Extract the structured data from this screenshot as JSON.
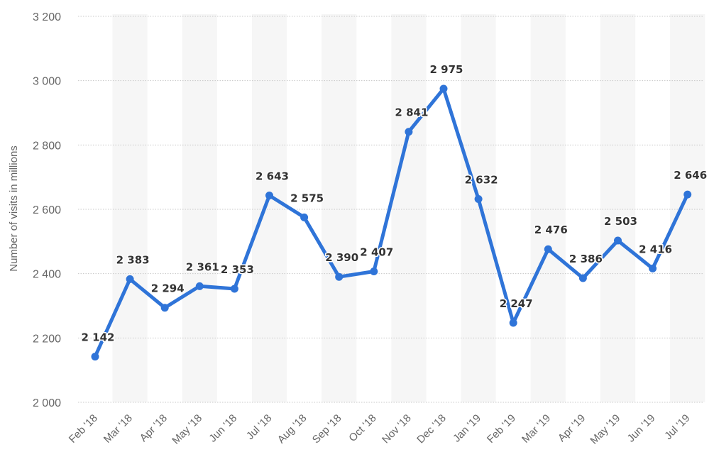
{
  "chart_data": {
    "type": "line",
    "ylabel": "Number of visits in millions",
    "xlabel": "",
    "title": "",
    "ylim": [
      2000,
      3200
    ],
    "yticks": [
      2000,
      2200,
      2400,
      2600,
      2800,
      3000,
      3200
    ],
    "ytick_labels": [
      "2 000",
      "2 200",
      "2 400",
      "2 600",
      "2 800",
      "3 000",
      "3 200"
    ],
    "grid": true,
    "categories": [
      "Feb '18",
      "Mar '18",
      "Apr '18",
      "May '18",
      "Jun '18",
      "Jul '18",
      "Aug '18",
      "Sep '18",
      "Oct '18",
      "Nov '18",
      "Dec '18",
      "Jan '19",
      "Feb '19",
      "Mar '19",
      "Apr '19",
      "May '19",
      "Jun '19",
      "Jul '19"
    ],
    "values": [
      2142,
      2383,
      2294,
      2361,
      2353,
      2643,
      2575,
      2390,
      2407,
      2841,
      2975,
      2632,
      2247,
      2476,
      2386,
      2503,
      2416,
      2646
    ],
    "value_labels": [
      "2 142",
      "2 383",
      "2 294",
      "2 361",
      "2 353",
      "2 643",
      "2 575",
      "2 390",
      "2 407",
      "2 841",
      "2 975",
      "2 632",
      "2 247",
      "2 476",
      "2 386",
      "2 503",
      "2 416",
      "2 646"
    ],
    "colors": {
      "line": "#2f74d8",
      "band": "#f6f6f6",
      "grid": "#c8c8c8"
    }
  }
}
